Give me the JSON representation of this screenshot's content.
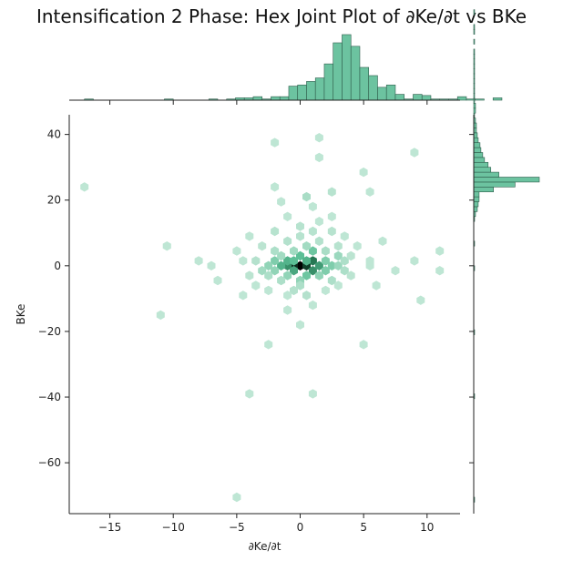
{
  "title": "Intensification 2 Phase: Hex Joint Plot of ∂Ke/∂t vs BKe",
  "chart_data": {
    "type": "hexbin",
    "title": "Intensification 2 Phase: Hex Joint Plot of ∂Ke/∂t vs BKe",
    "xlabel": "∂Ke/∂t",
    "ylabel": "BKe",
    "xlim": [
      -18.2,
      12.6
    ],
    "ylim": [
      -75.5,
      46
    ],
    "xticks": [
      -15,
      -10,
      -5,
      0,
      5,
      10
    ],
    "yticks": [
      40,
      20,
      0,
      -20,
      -40,
      -60
    ],
    "xtick_labels": [
      "−15",
      "−10",
      "−5",
      "0",
      "5",
      "10"
    ],
    "ytick_labels": [
      "40",
      "20",
      "0",
      "−20",
      "−40",
      "−60"
    ],
    "colors": {
      "bar_fill": "#6cc3a0",
      "bar_edge": "#2f5d4c",
      "hex_max": "#000000",
      "hex_dark": "#1d6b48",
      "hex_mid": "#5cbf96",
      "hex_light": "#e8f6ee"
    },
    "hexbins": [
      {
        "x": 0.0,
        "y": 0.0,
        "c": 1.0
      },
      {
        "x": -0.5,
        "y": 0.0,
        "c": 0.9
      },
      {
        "x": 0.5,
        "y": 0.0,
        "c": 0.85
      },
      {
        "x": -1.0,
        "y": 0.0,
        "c": 0.6
      },
      {
        "x": 1.0,
        "y": 1.5,
        "c": 0.7
      },
      {
        "x": 1.0,
        "y": -1.5,
        "c": 0.6
      },
      {
        "x": 1.5,
        "y": 0.0,
        "c": 0.55
      },
      {
        "x": -0.5,
        "y": -1.5,
        "c": 0.5
      },
      {
        "x": 0.0,
        "y": 3.0,
        "c": 0.4
      },
      {
        "x": -1.0,
        "y": 1.5,
        "c": 0.45
      },
      {
        "x": -1.5,
        "y": 0.0,
        "c": 0.45
      },
      {
        "x": 0.5,
        "y": -3.0,
        "c": 0.35
      },
      {
        "x": -0.5,
        "y": 1.5,
        "c": 0.4
      },
      {
        "x": 0.5,
        "y": 1.5,
        "c": 0.45
      },
      {
        "x": 1.0,
        "y": 4.5,
        "c": 0.35
      },
      {
        "x": 2.0,
        "y": 1.5,
        "c": 0.3
      },
      {
        "x": 2.5,
        "y": 0.0,
        "c": 0.3
      },
      {
        "x": 2.0,
        "y": -1.5,
        "c": 0.3
      },
      {
        "x": -2.0,
        "y": 1.5,
        "c": 0.3
      },
      {
        "x": -2.5,
        "y": 0.0,
        "c": 0.25
      },
      {
        "x": -2.0,
        "y": -1.5,
        "c": 0.25
      },
      {
        "x": -1.0,
        "y": -3.0,
        "c": 0.25
      },
      {
        "x": 0.0,
        "y": -4.5,
        "c": 0.25
      },
      {
        "x": 1.5,
        "y": -3.0,
        "c": 0.25
      },
      {
        "x": 3.0,
        "y": 3.0,
        "c": 0.22
      },
      {
        "x": 3.0,
        "y": 0.0,
        "c": 0.22
      },
      {
        "x": -3.0,
        "y": -1.5,
        "c": 0.2
      },
      {
        "x": -1.5,
        "y": 3.0,
        "c": 0.2
      },
      {
        "x": -0.5,
        "y": 4.5,
        "c": 0.2
      },
      {
        "x": 0.5,
        "y": 6.0,
        "c": 0.2
      },
      {
        "x": 2.0,
        "y": 4.5,
        "c": 0.18
      },
      {
        "x": -2.0,
        "y": 4.5,
        "c": 0.17
      },
      {
        "x": -2.5,
        "y": -3.0,
        "c": 0.17
      },
      {
        "x": -1.5,
        "y": -4.5,
        "c": 0.17
      },
      {
        "x": 0.0,
        "y": -6.0,
        "c": 0.17
      },
      {
        "x": 2.5,
        "y": -4.5,
        "c": 0.17
      },
      {
        "x": 3.5,
        "y": -1.5,
        "c": 0.17
      },
      {
        "x": 3.5,
        "y": 1.5,
        "c": 0.17
      },
      {
        "x": -3.5,
        "y": 1.5,
        "c": 0.15
      },
      {
        "x": -0.5,
        "y": -7.5,
        "c": 0.15
      },
      {
        "x": 1.5,
        "y": 7.5,
        "c": 0.15
      },
      {
        "x": -1.0,
        "y": 7.5,
        "c": 0.15
      },
      {
        "x": 0.0,
        "y": 9.0,
        "c": 0.14
      },
      {
        "x": 1.0,
        "y": 10.5,
        "c": 0.14
      },
      {
        "x": -2.0,
        "y": 10.5,
        "c": 0.14
      },
      {
        "x": 2.5,
        "y": 10.5,
        "c": 0.14
      },
      {
        "x": 0.0,
        "y": 12.0,
        "c": 0.14
      },
      {
        "x": 3.0,
        "y": 6.0,
        "c": 0.14
      },
      {
        "x": -3.0,
        "y": 6.0,
        "c": 0.13
      },
      {
        "x": 4.0,
        "y": 3.0,
        "c": 0.13
      },
      {
        "x": 4.0,
        "y": -3.0,
        "c": 0.13
      },
      {
        "x": -4.0,
        "y": -3.0,
        "c": 0.13
      },
      {
        "x": -4.5,
        "y": 1.5,
        "c": 0.12
      },
      {
        "x": 5.5,
        "y": 1.5,
        "c": 0.12
      },
      {
        "x": 5.5,
        "y": 0.0,
        "c": 0.12
      },
      {
        "x": -1.0,
        "y": -9.0,
        "c": 0.12
      },
      {
        "x": 0.5,
        "y": -9.0,
        "c": 0.15
      },
      {
        "x": 2.0,
        "y": -7.5,
        "c": 0.12
      },
      {
        "x": -2.5,
        "y": -7.5,
        "c": 0.12
      },
      {
        "x": -3.5,
        "y": -6.0,
        "c": 0.12
      },
      {
        "x": 3.0,
        "y": -6.0,
        "c": 0.12
      },
      {
        "x": 1.0,
        "y": -12.0,
        "c": 0.12
      },
      {
        "x": -1.0,
        "y": -13.5,
        "c": 0.12
      },
      {
        "x": -4.5,
        "y": -9.0,
        "c": 0.12
      },
      {
        "x": 0.0,
        "y": -18.0,
        "c": 0.12
      },
      {
        "x": -2.5,
        "y": -24.0,
        "c": 0.12
      },
      {
        "x": 5.0,
        "y": -24.0,
        "c": 0.12
      },
      {
        "x": -5.0,
        "y": 4.5,
        "c": 0.12
      },
      {
        "x": 4.5,
        "y": 6.0,
        "c": 0.12
      },
      {
        "x": -4.0,
        "y": 9.0,
        "c": 0.12
      },
      {
        "x": 3.5,
        "y": 9.0,
        "c": 0.12
      },
      {
        "x": 1.5,
        "y": 13.5,
        "c": 0.12
      },
      {
        "x": -1.0,
        "y": 15.0,
        "c": 0.12
      },
      {
        "x": 2.5,
        "y": 15.0,
        "c": 0.12
      },
      {
        "x": 1.0,
        "y": 18.0,
        "c": 0.12
      },
      {
        "x": -1.5,
        "y": 19.5,
        "c": 0.12
      },
      {
        "x": 0.5,
        "y": 21.0,
        "c": 0.18
      },
      {
        "x": 2.5,
        "y": 22.5,
        "c": 0.14
      },
      {
        "x": -2.0,
        "y": 24.0,
        "c": 0.12
      },
      {
        "x": 5.5,
        "y": 22.5,
        "c": 0.12
      },
      {
        "x": 5.0,
        "y": 28.5,
        "c": 0.12
      },
      {
        "x": 1.5,
        "y": 33.0,
        "c": 0.12
      },
      {
        "x": 1.5,
        "y": 39.0,
        "c": 0.12
      },
      {
        "x": 9.0,
        "y": 34.5,
        "c": 0.12
      },
      {
        "x": -2.0,
        "y": 37.5,
        "c": 0.12
      },
      {
        "x": -10.5,
        "y": 6.0,
        "c": 0.12
      },
      {
        "x": -8.0,
        "y": 1.5,
        "c": 0.12
      },
      {
        "x": -7.0,
        "y": 0.0,
        "c": 0.12
      },
      {
        "x": 7.5,
        "y": -1.5,
        "c": 0.12
      },
      {
        "x": 11.0,
        "y": 4.5,
        "c": 0.12
      },
      {
        "x": 11.0,
        "y": -1.5,
        "c": 0.12
      },
      {
        "x": 9.5,
        "y": -10.5,
        "c": 0.12
      },
      {
        "x": 9.0,
        "y": 1.5,
        "c": 0.12
      },
      {
        "x": -11.0,
        "y": -15.0,
        "c": 0.12
      },
      {
        "x": -17.0,
        "y": 24.0,
        "c": 0.12
      },
      {
        "x": -4.0,
        "y": -39.0,
        "c": 0.12
      },
      {
        "x": 1.0,
        "y": -39.0,
        "c": 0.12
      },
      {
        "x": -5.0,
        "y": -70.5,
        "c": 0.12
      },
      {
        "x": 6.5,
        "y": 7.5,
        "c": 0.12
      },
      {
        "x": -6.5,
        "y": -4.5,
        "c": 0.12
      },
      {
        "x": 6.0,
        "y": -6.0,
        "c": 0.12
      }
    ],
    "x_histogram": {
      "bin_start": -17.0,
      "bin_width": 0.7,
      "counts": [
        1,
        0,
        0,
        0,
        0,
        0,
        0,
        0,
        0,
        1,
        0,
        0,
        0,
        0,
        1,
        0,
        1,
        2,
        2,
        3,
        1,
        3,
        3,
        12,
        13,
        16,
        19,
        31,
        49,
        56,
        46,
        28,
        21,
        11,
        13,
        5,
        1,
        5,
        4,
        1,
        1,
        1,
        3,
        1,
        1,
        0,
        2
      ]
    },
    "y_histogram": {
      "bin_start": -72.0,
      "bin_width": 1.5,
      "counts": [
        1,
        0,
        0,
        0,
        0,
        0,
        0,
        0,
        0,
        0,
        0,
        0,
        0,
        0,
        0,
        0,
        0,
        0,
        0,
        0,
        0,
        1,
        0,
        0,
        0,
        0,
        0,
        0,
        0,
        0,
        0,
        0,
        0,
        0,
        1,
        0,
        0,
        0,
        0,
        0,
        0,
        0,
        0,
        0,
        0,
        0,
        0,
        1,
        0,
        0,
        0,
        0,
        1,
        0,
        0,
        0,
        0,
        1,
        2,
        4,
        5,
        6,
        6,
        22,
        46,
        73,
        28,
        19,
        16,
        12,
        10,
        8,
        7,
        5,
        4,
        3,
        3,
        2,
        1,
        2,
        2,
        1,
        1,
        1,
        1,
        1,
        1,
        1,
        1,
        1,
        1,
        1,
        0,
        1,
        0,
        1,
        1,
        0,
        0,
        1,
        0,
        0,
        0,
        0,
        0,
        1,
        0,
        0,
        0,
        0,
        0,
        0,
        0,
        0
      ]
    }
  }
}
